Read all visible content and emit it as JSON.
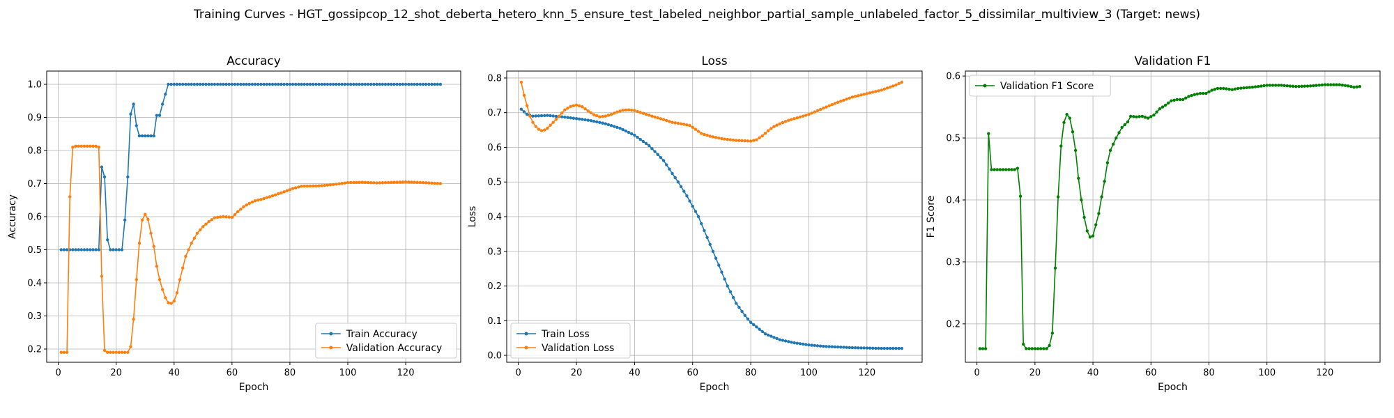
{
  "figure": {
    "suptitle": "Training Curves - HGT_gossipcop_12_shot_deberta_hetero_knn_5_ensure_test_labeled_neighbor_partial_sample_unlabeled_factor_5_dissimilar_multiview_3 (Target: news)"
  },
  "chart_data": [
    {
      "type": "line",
      "title": "Accuracy",
      "xlabel": "Epoch",
      "ylabel": "Accuracy",
      "xlim": [
        -4,
        139
      ],
      "ylim": [
        0.16,
        1.04
      ],
      "xticks": [
        0,
        20,
        40,
        60,
        80,
        100,
        120
      ],
      "yticks": [
        0.2,
        0.3,
        0.4,
        0.5,
        0.6,
        0.7,
        0.8,
        0.9,
        1.0
      ],
      "ytick_labels": [
        "0.2",
        "0.3",
        "0.4",
        "0.5",
        "0.6",
        "0.7",
        "0.8",
        "0.9",
        "1.0"
      ],
      "grid": true,
      "legend_position": "lower-right",
      "series": [
        {
          "name": "Train Accuracy",
          "color": "#1f77b4",
          "key": [
            [
              1,
              0.5
            ],
            [
              13,
              0.5
            ],
            [
              14,
              0.5
            ],
            [
              15,
              0.75
            ],
            [
              16,
              0.72
            ],
            [
              17,
              0.53
            ],
            [
              18,
              0.5
            ],
            [
              22,
              0.5
            ],
            [
              23,
              0.59
            ],
            [
              24,
              0.72
            ],
            [
              25,
              0.91
            ],
            [
              26,
              0.94
            ],
            [
              27,
              0.875
            ],
            [
              28,
              0.844
            ],
            [
              33,
              0.844
            ],
            [
              34,
              0.906
            ],
            [
              35,
              0.906
            ],
            [
              36,
              0.94
            ],
            [
              37,
              0.97
            ],
            [
              38,
              1.0
            ],
            [
              132,
              1.0
            ]
          ]
        },
        {
          "name": "Validation Accuracy",
          "color": "#ff7f0e",
          "key": [
            [
              1,
              0.19
            ],
            [
              3,
              0.19
            ],
            [
              4,
              0.66
            ],
            [
              5,
              0.81
            ],
            [
              6,
              0.813
            ],
            [
              13,
              0.813
            ],
            [
              14,
              0.81
            ],
            [
              15,
              0.42
            ],
            [
              16,
              0.196
            ],
            [
              17,
              0.19
            ],
            [
              24,
              0.19
            ],
            [
              25,
              0.207
            ],
            [
              26,
              0.29
            ],
            [
              27,
              0.41
            ],
            [
              28,
              0.52
            ],
            [
              29,
              0.59
            ],
            [
              30,
              0.607
            ],
            [
              31,
              0.592
            ],
            [
              32,
              0.55
            ],
            [
              33,
              0.51
            ],
            [
              34,
              0.45
            ],
            [
              35,
              0.41
            ],
            [
              36,
              0.38
            ],
            [
              37,
              0.355
            ],
            [
              38,
              0.34
            ],
            [
              39,
              0.338
            ],
            [
              40,
              0.345
            ],
            [
              41,
              0.37
            ],
            [
              42,
              0.41
            ],
            [
              43,
              0.445
            ],
            [
              44,
              0.48
            ],
            [
              46,
              0.52
            ],
            [
              48,
              0.55
            ],
            [
              50,
              0.57
            ],
            [
              52,
              0.585
            ],
            [
              54,
              0.597
            ],
            [
              57,
              0.6
            ],
            [
              60,
              0.598
            ],
            [
              62,
              0.615
            ],
            [
              64,
              0.63
            ],
            [
              66,
              0.64
            ],
            [
              68,
              0.648
            ],
            [
              70,
              0.652
            ],
            [
              74,
              0.663
            ],
            [
              78,
              0.675
            ],
            [
              81,
              0.685
            ],
            [
              84,
              0.692
            ],
            [
              90,
              0.693
            ],
            [
              96,
              0.698
            ],
            [
              100,
              0.703
            ],
            [
              105,
              0.704
            ],
            [
              110,
              0.702
            ],
            [
              120,
              0.705
            ],
            [
              126,
              0.703
            ],
            [
              132,
              0.7
            ]
          ]
        }
      ]
    },
    {
      "type": "line",
      "title": "Loss",
      "xlabel": "Epoch",
      "ylabel": "Loss",
      "xlim": [
        -4,
        139
      ],
      "ylim": [
        -0.02,
        0.82
      ],
      "xticks": [
        0,
        20,
        40,
        60,
        80,
        100,
        120
      ],
      "yticks": [
        0.0,
        0.1,
        0.2,
        0.3,
        0.4,
        0.5,
        0.6,
        0.7,
        0.8
      ],
      "ytick_labels": [
        "0.0",
        "0.1",
        "0.2",
        "0.3",
        "0.4",
        "0.5",
        "0.6",
        "0.7",
        "0.8"
      ],
      "grid": true,
      "legend_position": "lower-left",
      "series": [
        {
          "name": "Train Loss",
          "color": "#1f77b4",
          "key": [
            [
              1,
              0.71
            ],
            [
              3,
              0.695
            ],
            [
              5,
              0.69
            ],
            [
              10,
              0.692
            ],
            [
              15,
              0.688
            ],
            [
              20,
              0.683
            ],
            [
              25,
              0.677
            ],
            [
              30,
              0.668
            ],
            [
              35,
              0.655
            ],
            [
              40,
              0.635
            ],
            [
              45,
              0.605
            ],
            [
              50,
              0.562
            ],
            [
              55,
              0.5
            ],
            [
              58,
              0.46
            ],
            [
              62,
              0.4
            ],
            [
              65,
              0.34
            ],
            [
              68,
              0.28
            ],
            [
              70,
              0.24
            ],
            [
              72,
              0.2
            ],
            [
              75,
              0.15
            ],
            [
              78,
              0.115
            ],
            [
              80,
              0.095
            ],
            [
              85,
              0.062
            ],
            [
              90,
              0.045
            ],
            [
              95,
              0.036
            ],
            [
              100,
              0.03
            ],
            [
              105,
              0.026
            ],
            [
              110,
              0.024
            ],
            [
              115,
              0.022
            ],
            [
              120,
              0.021
            ],
            [
              125,
              0.02
            ],
            [
              132,
              0.02
            ]
          ]
        },
        {
          "name": "Validation Loss",
          "color": "#ff7f0e",
          "key": [
            [
              1,
              0.788
            ],
            [
              2,
              0.75
            ],
            [
              3,
              0.72
            ],
            [
              4,
              0.69
            ],
            [
              5,
              0.672
            ],
            [
              6,
              0.66
            ],
            [
              7,
              0.652
            ],
            [
              8,
              0.648
            ],
            [
              9,
              0.65
            ],
            [
              10,
              0.655
            ],
            [
              12,
              0.672
            ],
            [
              14,
              0.69
            ],
            [
              16,
              0.708
            ],
            [
              18,
              0.718
            ],
            [
              20,
              0.722
            ],
            [
              22,
              0.717
            ],
            [
              24,
              0.705
            ],
            [
              26,
              0.694
            ],
            [
              28,
              0.688
            ],
            [
              30,
              0.69
            ],
            [
              32,
              0.695
            ],
            [
              34,
              0.702
            ],
            [
              36,
              0.707
            ],
            [
              38,
              0.708
            ],
            [
              40,
              0.706
            ],
            [
              43,
              0.698
            ],
            [
              46,
              0.69
            ],
            [
              50,
              0.68
            ],
            [
              53,
              0.672
            ],
            [
              56,
              0.668
            ],
            [
              59,
              0.663
            ],
            [
              61,
              0.652
            ],
            [
              63,
              0.64
            ],
            [
              66,
              0.632
            ],
            [
              70,
              0.625
            ],
            [
              75,
              0.62
            ],
            [
              80,
              0.618
            ],
            [
              82,
              0.622
            ],
            [
              84,
              0.633
            ],
            [
              86,
              0.648
            ],
            [
              88,
              0.66
            ],
            [
              90,
              0.668
            ],
            [
              93,
              0.678
            ],
            [
              96,
              0.685
            ],
            [
              100,
              0.695
            ],
            [
              105,
              0.713
            ],
            [
              110,
              0.73
            ],
            [
              115,
              0.745
            ],
            [
              120,
              0.755
            ],
            [
              125,
              0.765
            ],
            [
              130,
              0.78
            ],
            [
              132,
              0.788
            ]
          ]
        }
      ]
    },
    {
      "type": "line",
      "title": "Validation F1",
      "xlabel": "Epoch",
      "ylabel": "F1 Score",
      "xlim": [
        -4,
        139
      ],
      "ylim": [
        0.138,
        0.608
      ],
      "xticks": [
        0,
        20,
        40,
        60,
        80,
        100,
        120
      ],
      "yticks": [
        0.2,
        0.3,
        0.4,
        0.5,
        0.6
      ],
      "ytick_labels": [
        "0.2",
        "0.3",
        "0.4",
        "0.5",
        "0.6"
      ],
      "grid": true,
      "legend_position": "upper-left",
      "series": [
        {
          "name": "Validation F1 Score",
          "color": "#008000",
          "key": [
            [
              1,
              0.16
            ],
            [
              3,
              0.16
            ],
            [
              4,
              0.507
            ],
            [
              5,
              0.449
            ],
            [
              13,
              0.449
            ],
            [
              14,
              0.451
            ],
            [
              15,
              0.406
            ],
            [
              16,
              0.167
            ],
            [
              17,
              0.16
            ],
            [
              24,
              0.16
            ],
            [
              25,
              0.165
            ],
            [
              26,
              0.185
            ],
            [
              27,
              0.29
            ],
            [
              28,
              0.405
            ],
            [
              29,
              0.487
            ],
            [
              30,
              0.525
            ],
            [
              31,
              0.538
            ],
            [
              32,
              0.532
            ],
            [
              33,
              0.51
            ],
            [
              34,
              0.48
            ],
            [
              35,
              0.435
            ],
            [
              36,
              0.4
            ],
            [
              37,
              0.372
            ],
            [
              38,
              0.35
            ],
            [
              39,
              0.34
            ],
            [
              40,
              0.342
            ],
            [
              41,
              0.36
            ],
            [
              42,
              0.378
            ],
            [
              43,
              0.405
            ],
            [
              44,
              0.43
            ],
            [
              45,
              0.46
            ],
            [
              46,
              0.48
            ],
            [
              47,
              0.49
            ],
            [
              48,
              0.5
            ],
            [
              50,
              0.517
            ],
            [
              52,
              0.526
            ],
            [
              53,
              0.535
            ],
            [
              55,
              0.534
            ],
            [
              57,
              0.535
            ],
            [
              59,
              0.532
            ],
            [
              61,
              0.537
            ],
            [
              63,
              0.547
            ],
            [
              65,
              0.553
            ],
            [
              67,
              0.56
            ],
            [
              69,
              0.562
            ],
            [
              71,
              0.562
            ],
            [
              73,
              0.567
            ],
            [
              75,
              0.57
            ],
            [
              77,
              0.572
            ],
            [
              79,
              0.572
            ],
            [
              81,
              0.577
            ],
            [
              83,
              0.58
            ],
            [
              85,
              0.58
            ],
            [
              88,
              0.578
            ],
            [
              90,
              0.58
            ],
            [
              95,
              0.582
            ],
            [
              100,
              0.585
            ],
            [
              105,
              0.585
            ],
            [
              110,
              0.583
            ],
            [
              115,
              0.584
            ],
            [
              120,
              0.586
            ],
            [
              125,
              0.586
            ],
            [
              128,
              0.584
            ],
            [
              130,
              0.582
            ],
            [
              132,
              0.583
            ]
          ]
        }
      ]
    }
  ]
}
